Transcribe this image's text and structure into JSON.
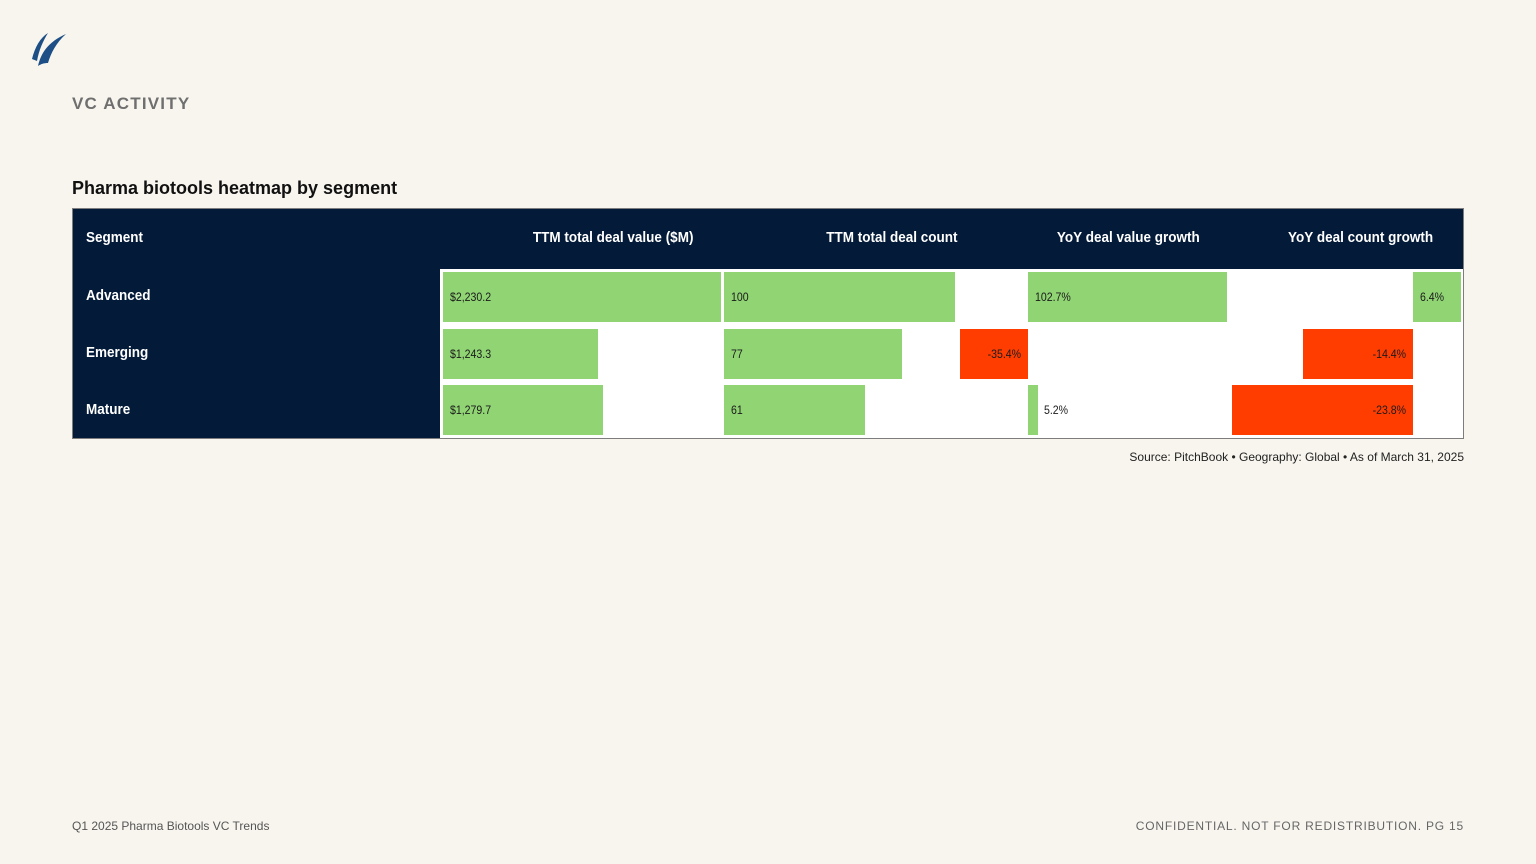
{
  "section_label": "VC ACTIVITY",
  "colors": {
    "background": "#f8f5ee",
    "header_navy": "#031a39",
    "positive_green": "#90d474",
    "negative_red": "#ff3d00",
    "logo_blue": "#1d4f86"
  },
  "logo": {
    "icon": "sail-logo-icon"
  },
  "chart_data": {
    "type": "table",
    "title": "Pharma biotools heatmap by segment",
    "columns": [
      "Segment",
      "TTM total deal value ($M)",
      "TTM total deal count",
      "YoY deal value growth",
      "YoY deal count growth"
    ],
    "rows": [
      {
        "segment": "Advanced",
        "deal_value": 2230.2,
        "deal_value_label": "$2,230.2",
        "deal_count": 100,
        "deal_count_label": "100",
        "value_growth": 102.7,
        "value_growth_label": "102.7%",
        "count_growth": 6.4,
        "count_growth_label": "6.4%"
      },
      {
        "segment": "Emerging",
        "deal_value": 1243.3,
        "deal_value_label": "$1,243.3",
        "deal_count": 77,
        "deal_count_label": "77",
        "value_growth": -35.4,
        "value_growth_label": "-35.4%",
        "count_growth": -14.4,
        "count_growth_label": "-14.4%"
      },
      {
        "segment": "Mature",
        "deal_value": 1279.7,
        "deal_value_label": "$1,279.7",
        "deal_count": 61,
        "deal_count_label": "61",
        "value_growth": 5.2,
        "value_growth_label": "5.2%",
        "count_growth": -23.8,
        "count_growth_label": "-23.8%"
      }
    ]
  },
  "source_note": "Source: PitchBook  •  Geography: Global  •  As of March 31, 2025",
  "footer": {
    "report_name": "Q1 2025 Pharma Biotools VC Trends",
    "confidential": "CONFIDENTIAL. NOT FOR REDISTRIBUTION.  PG 15"
  }
}
